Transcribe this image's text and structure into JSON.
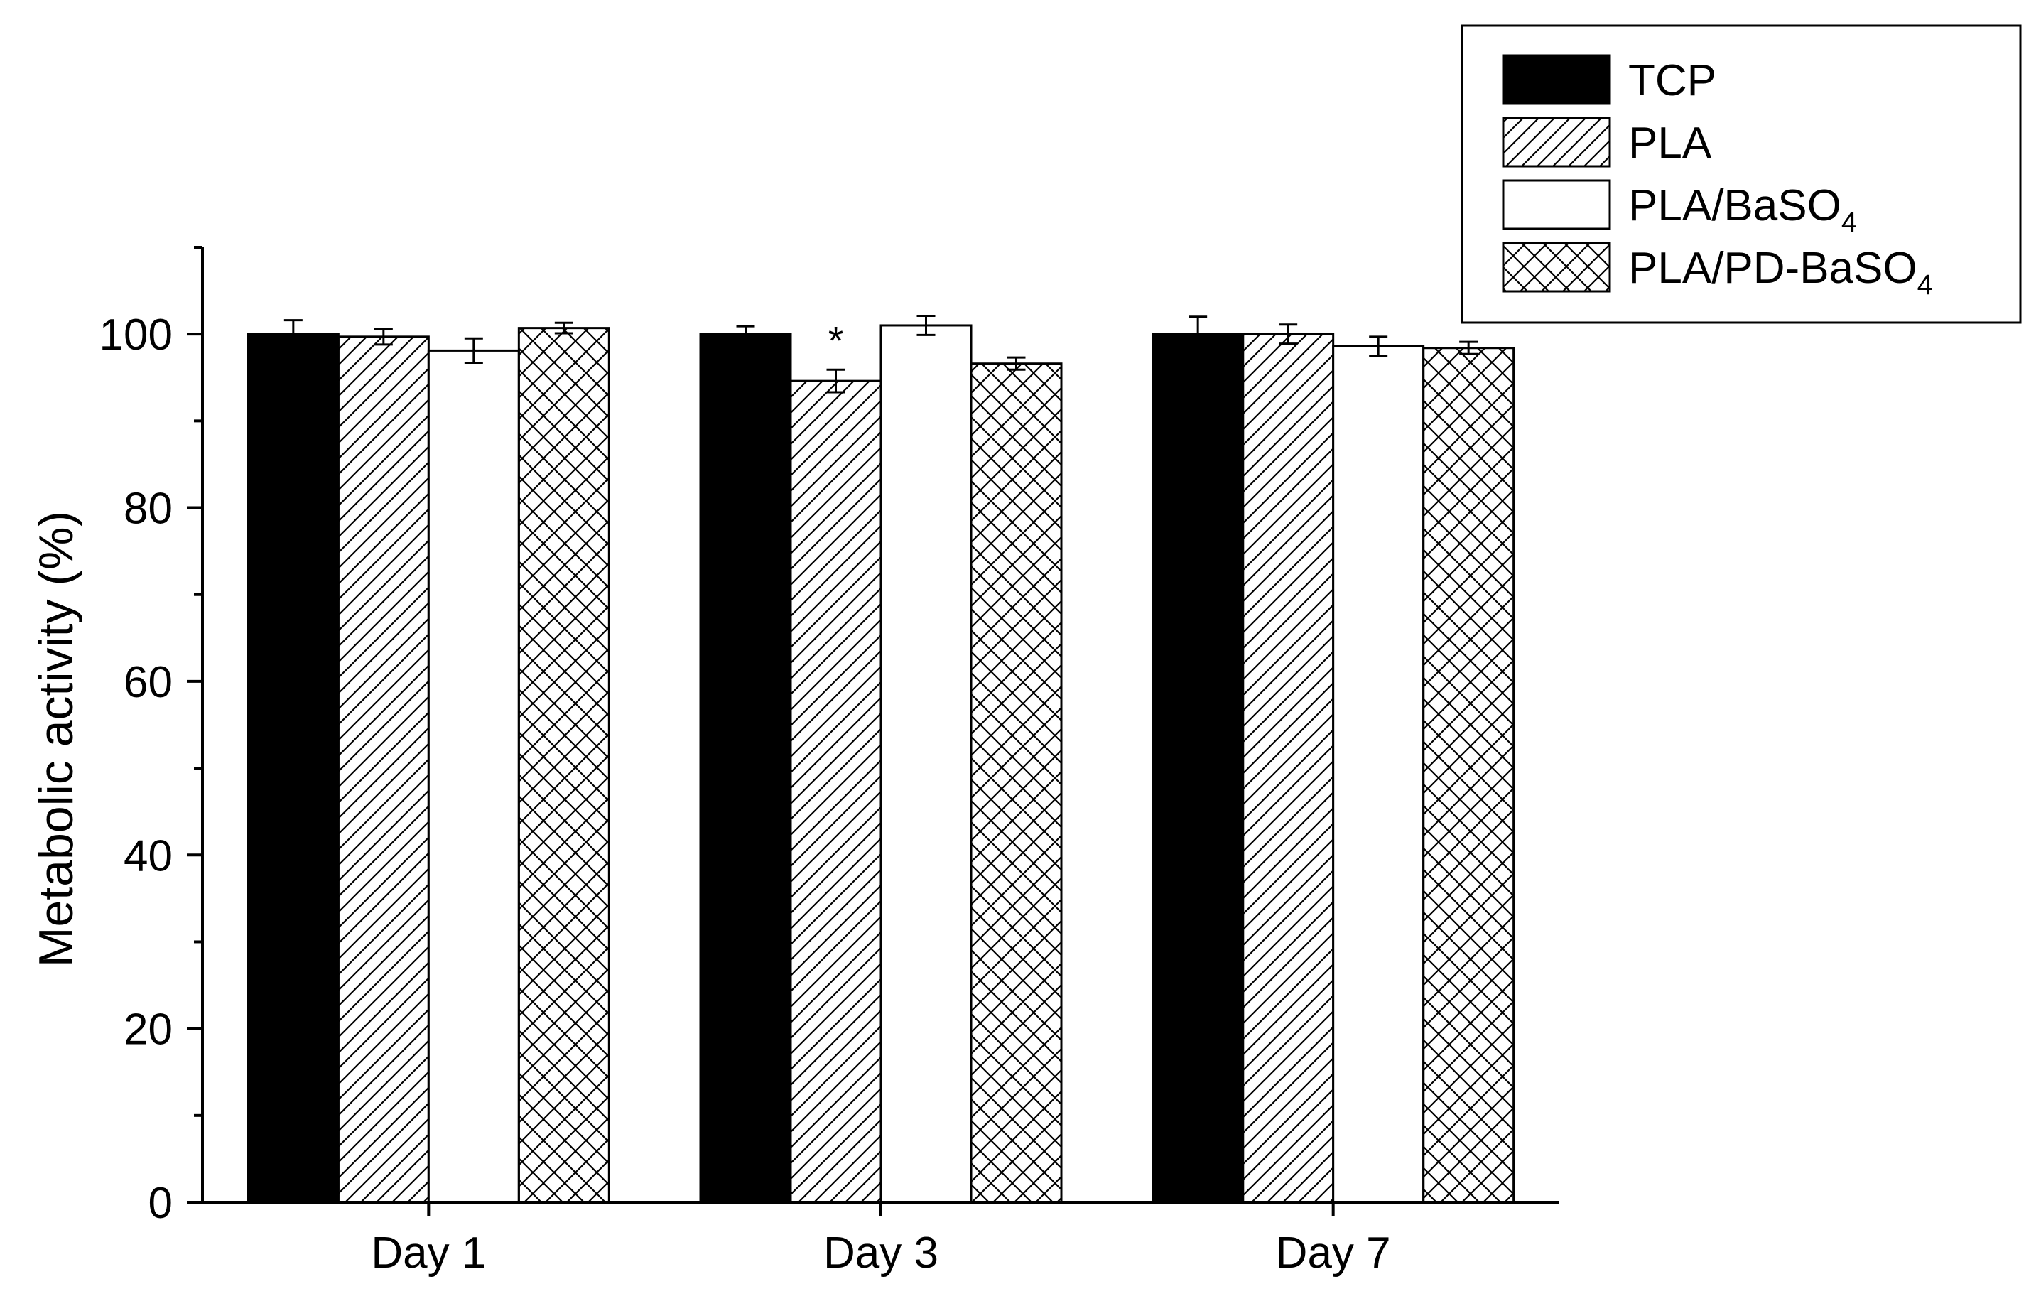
{
  "chart_data": {
    "type": "bar",
    "title": "",
    "xlabel": "",
    "ylabel": "Metabolic activity (%)",
    "ylim": [
      0,
      110
    ],
    "yticks": [
      0,
      20,
      40,
      60,
      80,
      100
    ],
    "categories": [
      "Day 1",
      "Day 3",
      "Day 7"
    ],
    "series": [
      {
        "name": "TCP",
        "name_sub": "",
        "pattern": "solid",
        "values": [
          100,
          100,
          100
        ],
        "errors": [
          1.6,
          0.9,
          2.0
        ]
      },
      {
        "name": "PLA",
        "name_sub": "",
        "pattern": "diagonal",
        "values": [
          99.7,
          94.6,
          100
        ],
        "errors": [
          0.9,
          1.3,
          1.1
        ]
      },
      {
        "name": "PLA/BaSO",
        "name_sub": "4",
        "pattern": "empty",
        "values": [
          98.1,
          101.0,
          98.6
        ],
        "errors": [
          1.4,
          1.1,
          1.1
        ]
      },
      {
        "name": "PLA/PD-BaSO",
        "name_sub": "4",
        "pattern": "crosshatch",
        "values": [
          100.7,
          96.6,
          98.4
        ],
        "errors": [
          0.6,
          0.7,
          0.7
        ]
      }
    ],
    "annotations": [
      {
        "text": "*",
        "category": "Day 3",
        "series": "PLA"
      }
    ],
    "grid": false,
    "legend_position": "top-right",
    "colors": {
      "bar_fill": "#000000",
      "background": "#ffffff",
      "stroke": "#000000"
    }
  }
}
